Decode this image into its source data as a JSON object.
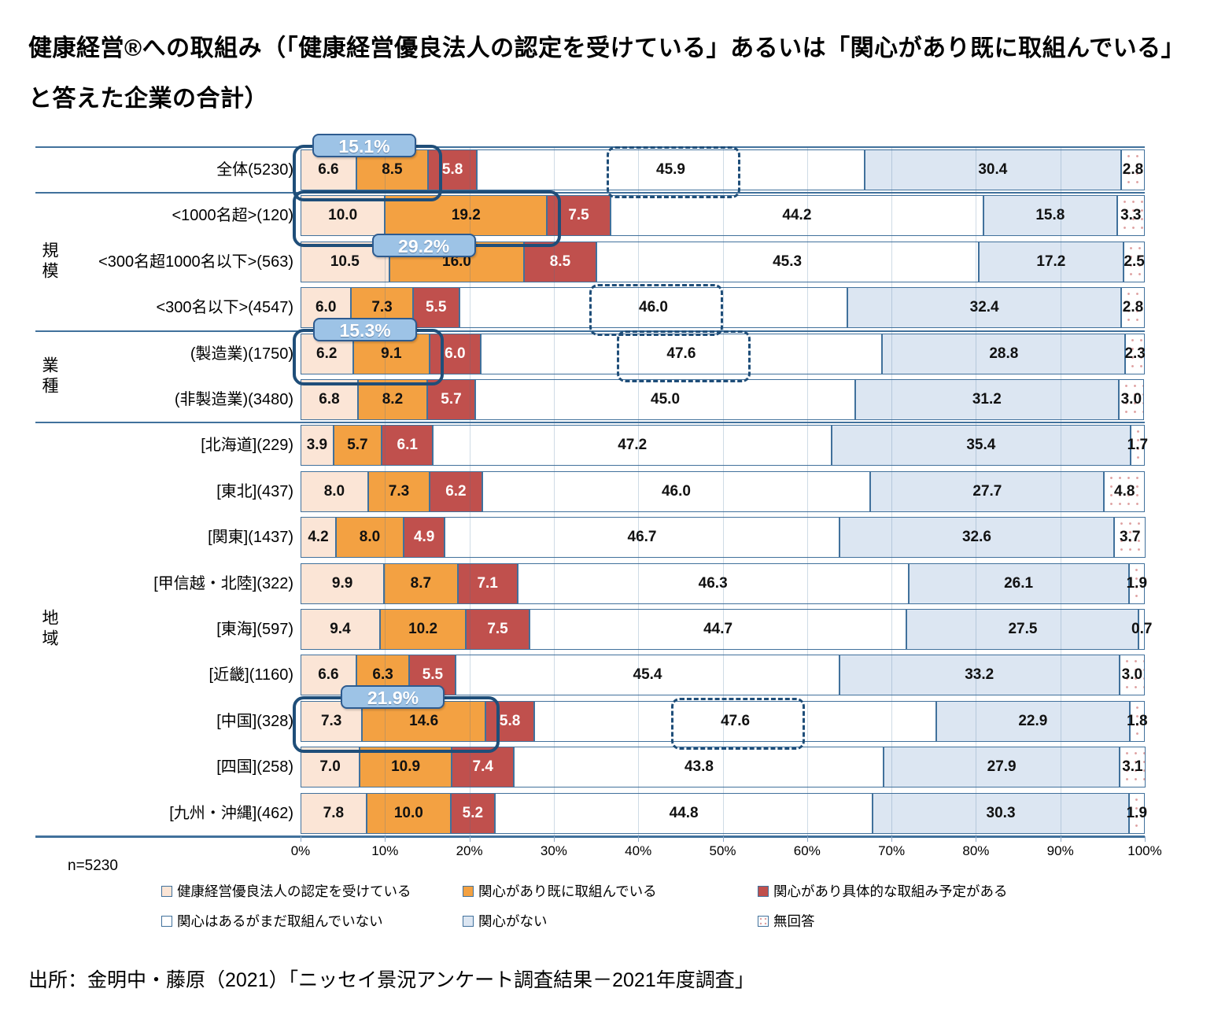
{
  "title": "健康経営®への取組み（「健康経営優良法人の認定を受けている」あるいは「関心があり既に取組んでいる」と答えた企業の合計）",
  "n_label": "n=5230",
  "source": "出所：金明中・藤原（2021）「ニッセイ景況アンケート調査結果－2021年度調査」",
  "chart_data": {
    "type": "bar",
    "orientation": "horizontal-stacked",
    "unit": "%",
    "xlim": [
      0,
      100
    ],
    "x_ticks": [
      "0%",
      "10%",
      "20%",
      "30%",
      "40%",
      "50%",
      "60%",
      "70%",
      "80%",
      "90%",
      "100%"
    ],
    "series_names": [
      "健康経営優良法人の認定を受けている",
      "関心があり既に取組んでいる",
      "関心があり具体的な取組み予定がある",
      "関心はあるがまだ取組んでいない",
      "関心がない",
      "無回答"
    ],
    "groups": [
      {
        "label": "",
        "start": 0,
        "end": 0
      },
      {
        "label": "規模",
        "start": 1,
        "end": 3
      },
      {
        "label": "業種",
        "start": 4,
        "end": 5
      },
      {
        "label": "地域",
        "start": 6,
        "end": 14
      }
    ],
    "rows": [
      {
        "label": "全体(5230)",
        "values": [
          6.6,
          8.5,
          5.8,
          45.9,
          30.4,
          2.8
        ]
      },
      {
        "label": "<1000名超>(120)",
        "values": [
          10.0,
          19.2,
          7.5,
          44.2,
          15.8,
          3.3
        ]
      },
      {
        "label": "<300名超1000名以下>(563)",
        "values": [
          10.5,
          16.0,
          8.5,
          45.3,
          17.2,
          2.5
        ]
      },
      {
        "label": "<300名以下>(4547)",
        "values": [
          6.0,
          7.3,
          5.5,
          46.0,
          32.4,
          2.8
        ]
      },
      {
        "label": "(製造業)(1750)",
        "values": [
          6.2,
          9.1,
          6.0,
          47.6,
          28.8,
          2.3
        ]
      },
      {
        "label": "(非製造業)(3480)",
        "values": [
          6.8,
          8.2,
          5.7,
          45.0,
          31.2,
          3.0
        ]
      },
      {
        "label": "[北海道](229)",
        "values": [
          3.9,
          5.7,
          6.1,
          47.2,
          35.4,
          1.7
        ]
      },
      {
        "label": "[東北](437)",
        "values": [
          8.0,
          7.3,
          6.2,
          46.0,
          27.7,
          4.8
        ]
      },
      {
        "label": "[関東](1437)",
        "values": [
          4.2,
          8.0,
          4.9,
          46.7,
          32.6,
          3.7
        ]
      },
      {
        "label": "[甲信越・北陸](322)",
        "values": [
          9.9,
          8.7,
          7.1,
          46.3,
          26.1,
          1.9
        ]
      },
      {
        "label": "[東海](597)",
        "values": [
          9.4,
          10.2,
          7.5,
          44.7,
          27.5,
          0.7
        ]
      },
      {
        "label": "[近畿](1160)",
        "values": [
          6.6,
          6.3,
          5.5,
          45.4,
          33.2,
          3.0
        ]
      },
      {
        "label": "[中国](328)",
        "values": [
          7.3,
          14.6,
          5.8,
          47.6,
          22.9,
          1.8
        ]
      },
      {
        "label": "[四国](258)",
        "values": [
          7.0,
          10.9,
          7.4,
          43.8,
          27.9,
          3.1
        ]
      },
      {
        "label": "[九州・沖縄](462)",
        "values": [
          7.8,
          10.0,
          5.2,
          44.8,
          30.3,
          1.9
        ]
      }
    ],
    "annotations": {
      "badges": [
        {
          "text": "15.1%",
          "row": 0,
          "position": "above"
        },
        {
          "text": "29.2%",
          "row": 1,
          "position": "below"
        },
        {
          "text": "15.3%",
          "row": 4,
          "position": "above"
        },
        {
          "text": "21.9%",
          "row": 12,
          "position": "above"
        }
      ],
      "solid_boxes": [
        {
          "row": 0,
          "segments": [
            0,
            1
          ]
        },
        {
          "row": 1,
          "segments": [
            0,
            1
          ]
        },
        {
          "row": 4,
          "segments": [
            0,
            1
          ]
        },
        {
          "row": 12,
          "segments": [
            0,
            1
          ]
        }
      ],
      "dashed_boxes": [
        {
          "row": 0,
          "segment": 3,
          "value": 45.9
        },
        {
          "row": 3,
          "segment": 3,
          "value": 46.0
        },
        {
          "row": 4,
          "segment": 3,
          "value": 47.6
        },
        {
          "row": 12,
          "segment": 3,
          "value": 47.6
        }
      ]
    }
  },
  "legend": {
    "items": [
      {
        "label": "健康経営優良法人の認定を受けている",
        "swatch": 0
      },
      {
        "label": "関心があり既に取組んでいる",
        "swatch": 1
      },
      {
        "label": "関心があり具体的な取組み予定がある",
        "swatch": 2
      },
      {
        "label": "関心はあるがまだ取組んでいない",
        "swatch": 3
      },
      {
        "label": "関心がない",
        "swatch": 4
      },
      {
        "label": "無回答",
        "swatch": 5
      }
    ]
  },
  "colors": {
    "segment_fills": [
      "#FBE5D6",
      "#F3A142",
      "#C0504D",
      "#FFFFFF",
      "#DCE6F2",
      "#FFFFFF"
    ],
    "no_answer_dot": "#CD6E6E",
    "bar_border": "#41719C",
    "separator": "#41719C",
    "highlight_border": "#1F4E79",
    "badge_fill": "#9DC3E6",
    "badge_border": "#2E5B8F",
    "badge_text": "#FFFFFF"
  }
}
